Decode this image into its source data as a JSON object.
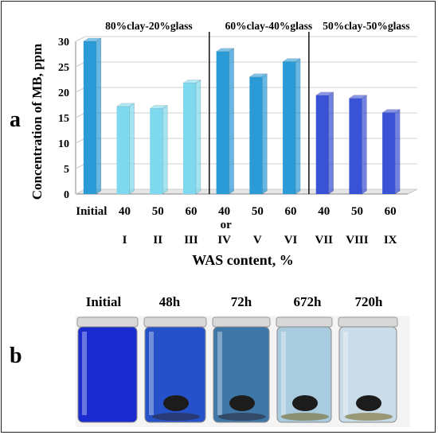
{
  "panel_a_label": "a",
  "panel_b_label": "b",
  "chart_data": {
    "type": "bar",
    "categories": [
      "Initial",
      "40",
      "50",
      "60",
      "40",
      "50",
      "60",
      "40",
      "50",
      "60"
    ],
    "roman_labels": [
      "I",
      "II",
      "III",
      "IV",
      "V",
      "VI",
      "VII",
      "VIII",
      "IX"
    ],
    "or_label": "or",
    "values": [
      30,
      17.2,
      16.8,
      21.8,
      28,
      23,
      26,
      19.4,
      18.8,
      16
    ],
    "bar_colors": [
      "#2b9bd8",
      "#7fd9ee",
      "#7fd9ee",
      "#7fd9ee",
      "#2b9bd8",
      "#2b9bd8",
      "#2b9bd8",
      "#3a52d6",
      "#3a52d6",
      "#3a52d6"
    ],
    "group_labels": [
      "80%clay-20%glass",
      "60%clay-40%glass",
      "50%clay-50%glass"
    ],
    "ylabel": "Concentration of MB, ppm",
    "xlabel": "WAS content, %",
    "ylim": [
      0,
      30
    ],
    "yticks": [
      0,
      5,
      10,
      15,
      20,
      25,
      30
    ],
    "grid": true
  },
  "photo_panel": {
    "time_labels": [
      "Initial",
      "48h",
      "72h",
      "672h",
      "720h"
    ],
    "liquid_colors": [
      "#1a2bd0",
      "#2652c9",
      "#3f78a8",
      "#a9cbe0",
      "#c9dce8"
    ]
  }
}
